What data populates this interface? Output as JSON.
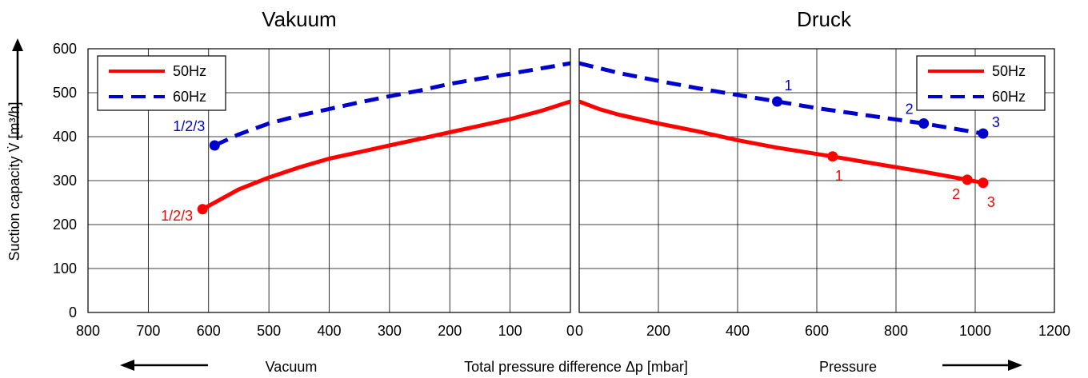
{
  "chart_data": [
    {
      "type": "line",
      "title": "Vakuum",
      "xlabel": "Vacuum",
      "ylabel": "Suction capacity V̇ [m³/h]",
      "xlim": [
        800,
        0
      ],
      "ylim": [
        0,
        600
      ],
      "x_ticks": [
        "800",
        "700",
        "600",
        "500",
        "400",
        "300",
        "200",
        "100",
        "0"
      ],
      "y_ticks": [
        "0",
        "100",
        "200",
        "300",
        "400",
        "500",
        "600"
      ],
      "grid": true,
      "legend": {
        "position": "top-left",
        "entries": [
          "50Hz",
          "60Hz"
        ]
      },
      "series": [
        {
          "name": "50Hz",
          "color": "#ff0000",
          "style": "solid",
          "x": [
            610,
            550,
            500,
            450,
            400,
            350,
            300,
            250,
            200,
            150,
            100,
            50,
            0
          ],
          "y": [
            235,
            280,
            307,
            330,
            350,
            365,
            380,
            395,
            410,
            425,
            440,
            458,
            480
          ],
          "markers": [
            {
              "x": 610,
              "y": 235,
              "label": "1/2/3"
            }
          ]
        },
        {
          "name": "60Hz",
          "color": "#0000cc",
          "style": "dashed",
          "x": [
            590,
            550,
            500,
            450,
            400,
            350,
            300,
            250,
            200,
            150,
            100,
            50,
            0
          ],
          "y": [
            380,
            405,
            430,
            448,
            463,
            478,
            492,
            505,
            520,
            532,
            543,
            555,
            567
          ],
          "markers": [
            {
              "x": 590,
              "y": 380,
              "label": "1/2/3"
            }
          ]
        }
      ]
    },
    {
      "type": "line",
      "title": "Druck",
      "xlabel": "Pressure",
      "xlim": [
        0,
        1200
      ],
      "ylim": [
        0,
        600
      ],
      "x_ticks": [
        "0",
        "200",
        "400",
        "600",
        "800",
        "1000",
        "1200"
      ],
      "grid": true,
      "legend": {
        "position": "top-right",
        "entries": [
          "50Hz",
          "60Hz"
        ]
      },
      "series": [
        {
          "name": "50Hz",
          "color": "#ff0000",
          "style": "solid",
          "x": [
            0,
            50,
            100,
            200,
            300,
            400,
            500,
            640,
            750,
            870,
            980,
            1020
          ],
          "y": [
            480,
            463,
            450,
            430,
            412,
            392,
            375,
            355,
            338,
            320,
            302,
            295
          ],
          "markers": [
            {
              "x": 640,
              "y": 355,
              "label": "1"
            },
            {
              "x": 980,
              "y": 302,
              "label": "2"
            },
            {
              "x": 1020,
              "y": 295,
              "label": "3"
            }
          ]
        },
        {
          "name": "60Hz",
          "color": "#0000cc",
          "style": "dashed",
          "x": [
            0,
            100,
            200,
            300,
            400,
            500,
            600,
            700,
            870,
            1020
          ],
          "y": [
            567,
            545,
            527,
            510,
            495,
            480,
            465,
            452,
            430,
            407
          ],
          "markers": [
            {
              "x": 500,
              "y": 480,
              "label": "1"
            },
            {
              "x": 870,
              "y": 430,
              "label": "2"
            },
            {
              "x": 1020,
              "y": 407,
              "label": "3"
            }
          ]
        }
      ]
    }
  ],
  "shared_xlabel": "Total pressure difference Δp [mbar]"
}
